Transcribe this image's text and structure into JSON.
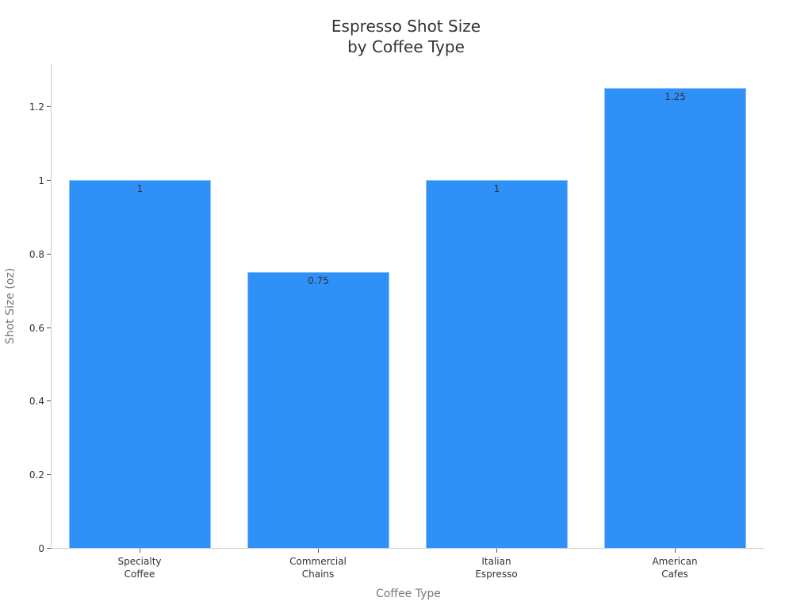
{
  "chart_data": {
    "type": "bar",
    "title": "Espresso Shot Size\nby Coffee Type",
    "title_lines": [
      "Espresso Shot Size",
      "by Coffee Type"
    ],
    "xlabel": "Coffee Type",
    "ylabel": "Shot Size (oz)",
    "categories": [
      "Specialty Coffee",
      "Commercial Chains",
      "Italian Espresso",
      "American Cafes"
    ],
    "category_lines": [
      [
        "Specialty",
        "Coffee"
      ],
      [
        "Commercial",
        "Chains"
      ],
      [
        "Italian",
        "Espresso"
      ],
      [
        "American",
        "Cafes"
      ]
    ],
    "values": [
      1,
      0.75,
      1,
      1.25
    ],
    "value_labels": [
      "1",
      "0.75",
      "1",
      "1.25"
    ],
    "ylim": [
      0,
      1.3
    ],
    "yticks": [
      0,
      0.2,
      0.4,
      0.6,
      0.8,
      1,
      1.2
    ],
    "ytick_labels": [
      "0",
      "0.2",
      "0.4",
      "0.6",
      "0.8",
      "1",
      "1.2"
    ],
    "grid": false,
    "legend": null,
    "bar_color": "#2f91f8"
  }
}
